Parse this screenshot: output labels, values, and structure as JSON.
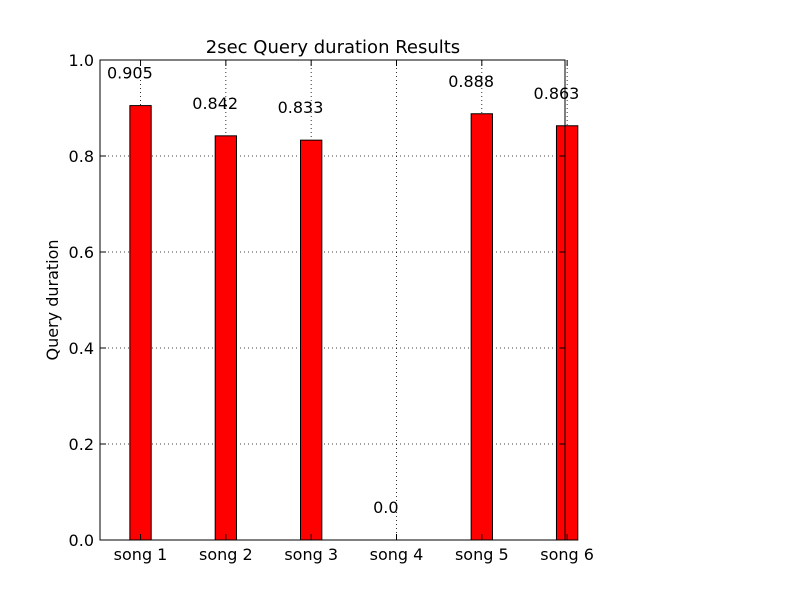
{
  "chart_data": {
    "type": "bar",
    "title": "2sec Query duration Results",
    "xlabel": "",
    "ylabel": "Query duration",
    "categories": [
      "song 1",
      "song 2",
      "song 3",
      "song 4",
      "song 5",
      "song 6"
    ],
    "values": [
      0.905,
      0.842,
      0.833,
      0.0,
      0.888,
      0.863
    ],
    "data_labels": [
      "0.905",
      "0.842",
      "0.833",
      "0.0",
      "0.888",
      "0.863"
    ],
    "ylim": [
      0,
      1.0
    ],
    "yticks": [
      "0.0",
      "0.2",
      "0.4",
      "0.6",
      "0.8",
      "1.0"
    ],
    "grid": true,
    "bar_color": "#ff0000",
    "edge_color": "#000000"
  }
}
